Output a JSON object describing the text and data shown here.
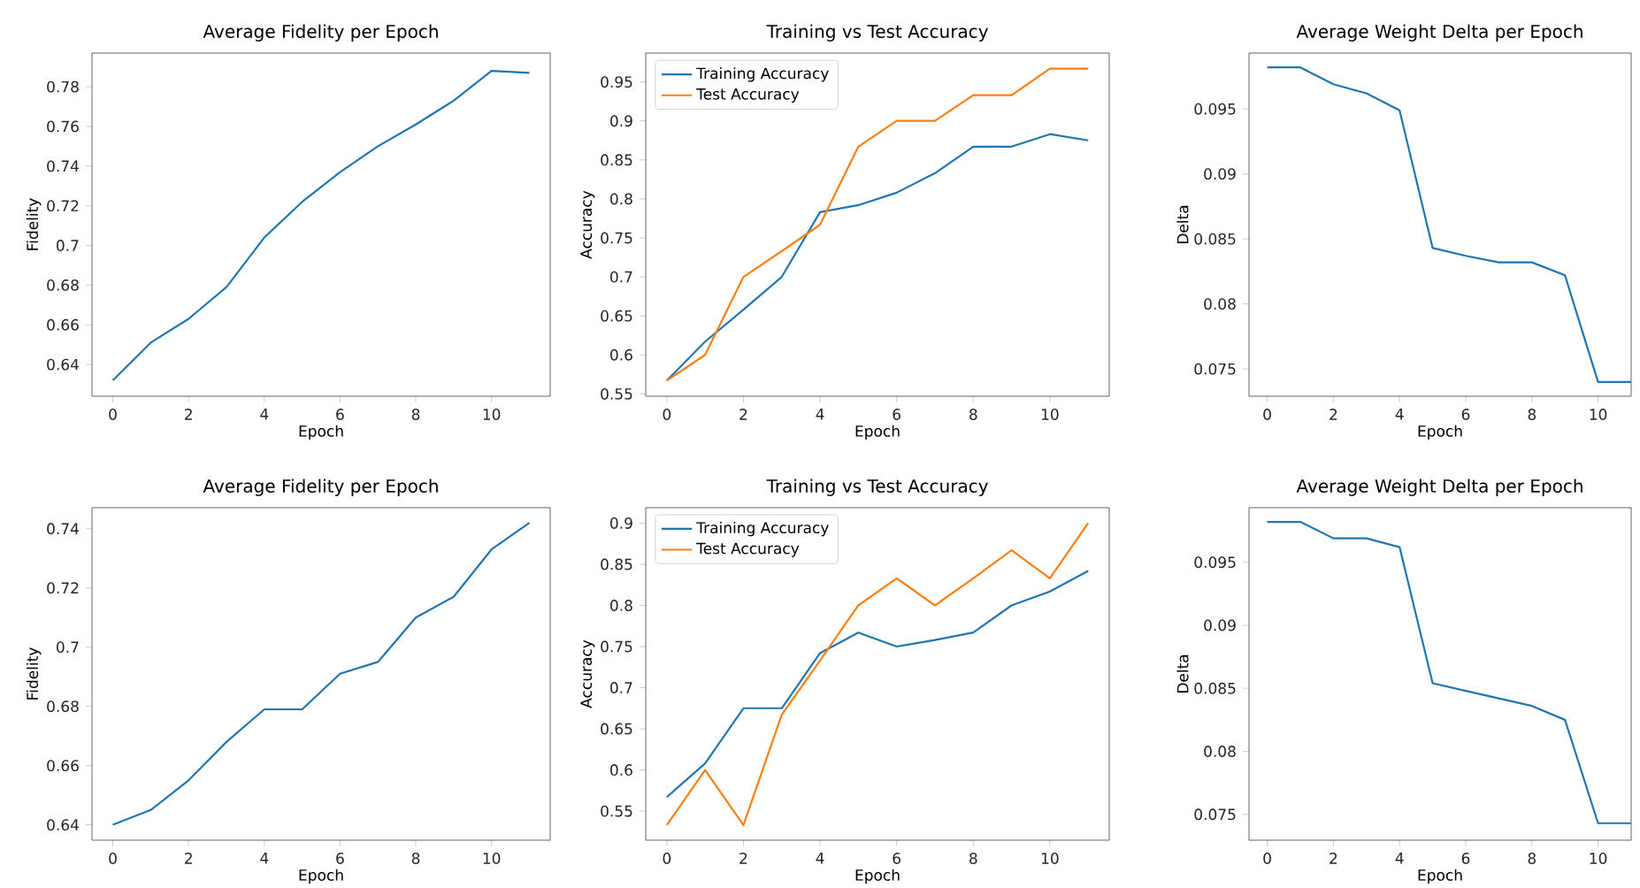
{
  "chart_data": [
    {
      "type": "line",
      "title": "Average Fidelity per Epoch",
      "xlabel": "Epoch",
      "ylabel": "Fidelity",
      "x": [
        0,
        1,
        2,
        3,
        4,
        5,
        6,
        7,
        8,
        9,
        10,
        11
      ],
      "xlim": [
        -0.55,
        11.55
      ],
      "xticks": [
        0,
        2,
        4,
        6,
        8,
        10
      ],
      "ylim": [
        0.624,
        0.797
      ],
      "yticks": [
        0.64,
        0.66,
        0.68,
        0.7,
        0.72,
        0.74,
        0.76,
        0.78
      ],
      "series": [
        {
          "color": "#1f77b4",
          "values": [
            0.632,
            0.651,
            0.663,
            0.679,
            0.704,
            0.722,
            0.737,
            0.75,
            0.761,
            0.773,
            0.788,
            0.787
          ]
        }
      ]
    },
    {
      "type": "line",
      "title": "Training vs Test Accuracy",
      "xlabel": "Epoch",
      "ylabel": "Accuracy",
      "x": [
        0,
        1,
        2,
        3,
        4,
        5,
        6,
        7,
        8,
        9,
        10,
        11
      ],
      "xlim": [
        -0.55,
        11.55
      ],
      "xticks": [
        0,
        2,
        4,
        6,
        8,
        10
      ],
      "ylim": [
        0.547,
        0.987
      ],
      "yticks": [
        0.55,
        0.6,
        0.65,
        0.7,
        0.75,
        0.8,
        0.85,
        0.9,
        0.95
      ],
      "legend": "top left",
      "series": [
        {
          "name": "Training Accuracy",
          "color": "#1f77b4",
          "values": [
            0.567,
            0.617,
            0.658,
            0.7,
            0.783,
            0.792,
            0.808,
            0.833,
            0.867,
            0.867,
            0.883,
            0.875
          ]
        },
        {
          "name": "Test Accuracy",
          "color": "#ff7f0e",
          "values": [
            0.567,
            0.6,
            0.7,
            0.733,
            0.767,
            0.867,
            0.9,
            0.9,
            0.933,
            0.933,
            0.967,
            0.967
          ]
        }
      ]
    },
    {
      "type": "line",
      "title": "Average Weight Delta per Epoch",
      "xlabel": "Epoch",
      "ylabel": "Delta",
      "x": [
        0,
        1,
        2,
        3,
        4,
        5,
        6,
        7,
        8,
        9,
        10,
        11
      ],
      "xlim": [
        -0.55,
        11
      ],
      "xticks": [
        0,
        2,
        4,
        6,
        8,
        10
      ],
      "ylim": [
        0.0729,
        0.0993
      ],
      "yticks": [
        0.075,
        0.08,
        0.085,
        0.09,
        0.095
      ],
      "series": [
        {
          "color": "#1f77b4",
          "values": [
            0.0982,
            0.0982,
            0.0969,
            0.0962,
            0.0949,
            0.0843,
            0.0837,
            0.0832,
            0.0832,
            0.0822,
            0.074,
            0.074
          ]
        }
      ]
    },
    {
      "type": "line",
      "title": "Average Fidelity per Epoch",
      "xlabel": "Epoch",
      "ylabel": "Fidelity",
      "x": [
        0,
        1,
        2,
        3,
        4,
        5,
        6,
        7,
        8,
        9,
        10,
        11
      ],
      "xlim": [
        -0.55,
        11.55
      ],
      "xticks": [
        0,
        2,
        4,
        6,
        8,
        10
      ],
      "ylim": [
        0.6348,
        0.7471
      ],
      "yticks": [
        0.64,
        0.66,
        0.68,
        0.7,
        0.72,
        0.74
      ],
      "series": [
        {
          "color": "#1f77b4",
          "values": [
            0.64,
            0.645,
            0.655,
            0.668,
            0.679,
            0.679,
            0.691,
            0.695,
            0.71,
            0.717,
            0.733,
            0.742
          ]
        }
      ]
    },
    {
      "type": "line",
      "title": "Training vs Test Accuracy",
      "xlabel": "Epoch",
      "ylabel": "Accuracy",
      "x": [
        0,
        1,
        2,
        3,
        4,
        5,
        6,
        7,
        8,
        9,
        10,
        11
      ],
      "xlim": [
        -0.55,
        11.55
      ],
      "xticks": [
        0,
        2,
        4,
        6,
        8,
        10
      ],
      "ylim": [
        0.5146,
        0.9188
      ],
      "yticks": [
        0.55,
        0.6,
        0.65,
        0.7,
        0.75,
        0.8,
        0.85,
        0.9
      ],
      "legend": "top left",
      "series": [
        {
          "name": "Training Accuracy",
          "color": "#1f77b4",
          "values": [
            0.567,
            0.608,
            0.675,
            0.675,
            0.742,
            0.767,
            0.75,
            0.758,
            0.767,
            0.8,
            0.817,
            0.842
          ]
        },
        {
          "name": "Test Accuracy",
          "color": "#ff7f0e",
          "values": [
            0.533,
            0.6,
            0.533,
            0.667,
            0.733,
            0.8,
            0.833,
            0.8,
            0.833,
            0.867,
            0.833,
            0.9
          ]
        }
      ]
    },
    {
      "type": "line",
      "title": "Average Weight Delta per Epoch",
      "xlabel": "Epoch",
      "ylabel": "Delta",
      "x": [
        0,
        1,
        2,
        3,
        4,
        5,
        6,
        7,
        8,
        9,
        10,
        11
      ],
      "xlim": [
        -0.55,
        11
      ],
      "xticks": [
        0,
        2,
        4,
        6,
        8,
        10
      ],
      "ylim": [
        0.07295,
        0.09933
      ],
      "yticks": [
        0.075,
        0.08,
        0.085,
        0.09,
        0.095
      ],
      "series": [
        {
          "color": "#1f77b4",
          "values": [
            0.0982,
            0.0982,
            0.0969,
            0.0969,
            0.0962,
            0.0854,
            0.0848,
            0.0842,
            0.0836,
            0.0825,
            0.0743,
            0.0743
          ]
        }
      ]
    }
  ]
}
